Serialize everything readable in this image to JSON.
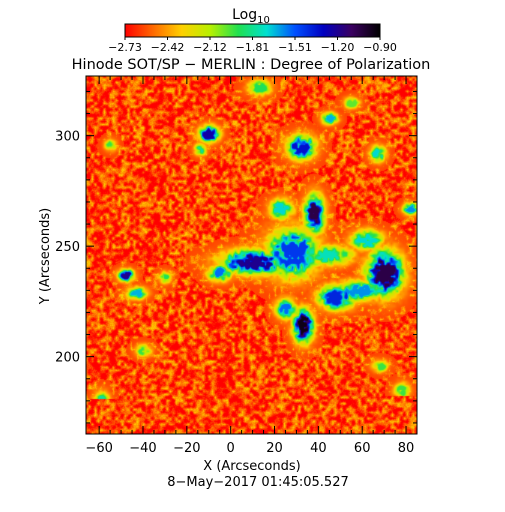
{
  "chart_data": {
    "type": "heatmap",
    "title": "Hinode SOT/SP − MERLIN : Degree of Polarization",
    "xlabel": "X (Arcseconds)",
    "ylabel": "Y (Arcseconds)",
    "xlim": [
      -66,
      85
    ],
    "ylim": [
      165,
      327
    ],
    "x_ticks": [
      "−60",
      "−40",
      "−20",
      "0",
      "20",
      "40",
      "60",
      "80"
    ],
    "y_ticks": [
      "200",
      "250",
      "300"
    ],
    "x_tick_values": [
      -60,
      -40,
      -20,
      0,
      20,
      40,
      60,
      80
    ],
    "y_tick_values": [
      200,
      250,
      300
    ],
    "timestamp": "8−May−2017 01:45:05.527",
    "colorbar": {
      "label_main": "Log",
      "label_sub": "10",
      "range": [
        -2.73,
        -0.9
      ],
      "ticks": [
        "−2.73",
        "−2.42",
        "−2.12",
        "−1.81",
        "−1.51",
        "−1.20",
        "−0.90"
      ],
      "colormap": [
        "#ff0000",
        "#ff6a00",
        "#ffd000",
        "#b8f000",
        "#20e050",
        "#00e0d0",
        "#0050ff",
        "#0000c0",
        "#3a0060",
        "#000000"
      ]
    },
    "background_level": -2.6,
    "regions": [
      {
        "x": 28,
        "y": 247,
        "rx": 13,
        "ry": 12,
        "level": -1.45
      },
      {
        "x": 38,
        "y": 265,
        "rx": 5,
        "ry": 9,
        "level": -1.05
      },
      {
        "x": 10,
        "y": 243,
        "rx": 16,
        "ry": 6,
        "level": -1.2
      },
      {
        "x": -5,
        "y": 238,
        "rx": 6,
        "ry": 4,
        "level": -1.55
      },
      {
        "x": 45,
        "y": 246,
        "rx": 11,
        "ry": 5,
        "level": -1.75
      },
      {
        "x": 70,
        "y": 238,
        "rx": 9,
        "ry": 11,
        "level": -1.05
      },
      {
        "x": 58,
        "y": 230,
        "rx": 12,
        "ry": 5,
        "level": -1.6
      },
      {
        "x": 62,
        "y": 253,
        "rx": 8,
        "ry": 5,
        "level": -1.7
      },
      {
        "x": 33,
        "y": 214,
        "rx": 5,
        "ry": 8,
        "level": -0.95
      },
      {
        "x": 48,
        "y": 227,
        "rx": 9,
        "ry": 6,
        "level": -1.4
      },
      {
        "x": 25,
        "y": 222,
        "rx": 5,
        "ry": 5,
        "level": -1.55
      },
      {
        "x": 23,
        "y": 267,
        "rx": 6,
        "ry": 5,
        "level": -1.7
      },
      {
        "x": -48,
        "y": 237,
        "rx": 4,
        "ry": 3,
        "level": -1.2
      },
      {
        "x": -43,
        "y": 229,
        "rx": 5,
        "ry": 3,
        "level": -1.65
      },
      {
        "x": -30,
        "y": 236,
        "rx": 3,
        "ry": 3,
        "level": -1.9
      },
      {
        "x": 32,
        "y": 295,
        "rx": 7,
        "ry": 6,
        "level": -1.35
      },
      {
        "x": -10,
        "y": 301,
        "rx": 5,
        "ry": 4,
        "level": -1.25
      },
      {
        "x": -14,
        "y": 294,
        "rx": 3,
        "ry": 3,
        "level": -1.8
      },
      {
        "x": 45,
        "y": 308,
        "rx": 4,
        "ry": 3,
        "level": -1.65
      },
      {
        "x": 67,
        "y": 292,
        "rx": 4,
        "ry": 4,
        "level": -1.7
      },
      {
        "x": 82,
        "y": 267,
        "rx": 4,
        "ry": 3,
        "level": -1.6
      },
      {
        "x": -55,
        "y": 296,
        "rx": 3,
        "ry": 3,
        "level": -1.95
      },
      {
        "x": 13,
        "y": 322,
        "rx": 6,
        "ry": 4,
        "level": -1.9
      },
      {
        "x": -40,
        "y": 203,
        "rx": 4,
        "ry": 3,
        "level": -1.95
      },
      {
        "x": 68,
        "y": 196,
        "rx": 4,
        "ry": 3,
        "level": -1.95
      },
      {
        "x": -59,
        "y": 180,
        "rx": 4,
        "ry": 5,
        "level": -1.8
      },
      {
        "x": 78,
        "y": 185,
        "rx": 4,
        "ry": 4,
        "level": -1.95
      },
      {
        "x": -20,
        "y": 172,
        "rx": 4,
        "ry": 3,
        "level": -2.0
      },
      {
        "x": 55,
        "y": 315,
        "rx": 4,
        "ry": 3,
        "level": -2.0
      }
    ]
  }
}
